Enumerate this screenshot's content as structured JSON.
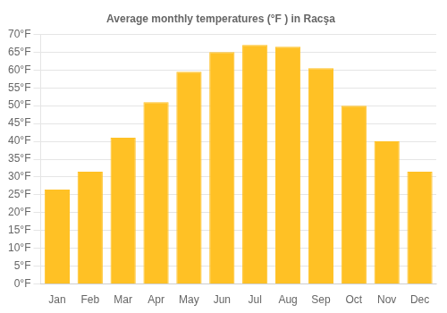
{
  "chart_data": {
    "type": "bar",
    "title": "Average monthly temperatures (°F ) in Racşa",
    "categories": [
      "Jan",
      "Feb",
      "Mar",
      "Apr",
      "May",
      "Jun",
      "Jul",
      "Aug",
      "Sep",
      "Oct",
      "Nov",
      "Dec"
    ],
    "values": [
      26.5,
      31.5,
      41.0,
      51.0,
      59.5,
      65.0,
      67.0,
      66.5,
      60.5,
      50.0,
      40.0,
      31.5
    ],
    "color": "#FFC125",
    "ylim": [
      0,
      70
    ],
    "yticks": [
      {
        "value": 0,
        "label": "0°F"
      },
      {
        "value": 5,
        "label": "5°F"
      },
      {
        "value": 10,
        "label": "10°F"
      },
      {
        "value": 15,
        "label": "15°F"
      },
      {
        "value": 20,
        "label": "20°F"
      },
      {
        "value": 25,
        "label": "25°F"
      },
      {
        "value": 30,
        "label": "30°F"
      },
      {
        "value": 35,
        "label": "35°F"
      },
      {
        "value": 40,
        "label": "40°F"
      },
      {
        "value": 45,
        "label": "45°F"
      },
      {
        "value": 50,
        "label": "50°F"
      },
      {
        "value": 55,
        "label": "55°F"
      },
      {
        "value": 60,
        "label": "60°F"
      },
      {
        "value": 65,
        "label": "65°F"
      },
      {
        "value": 70,
        "label": "70°F"
      }
    ],
    "grid": true
  }
}
